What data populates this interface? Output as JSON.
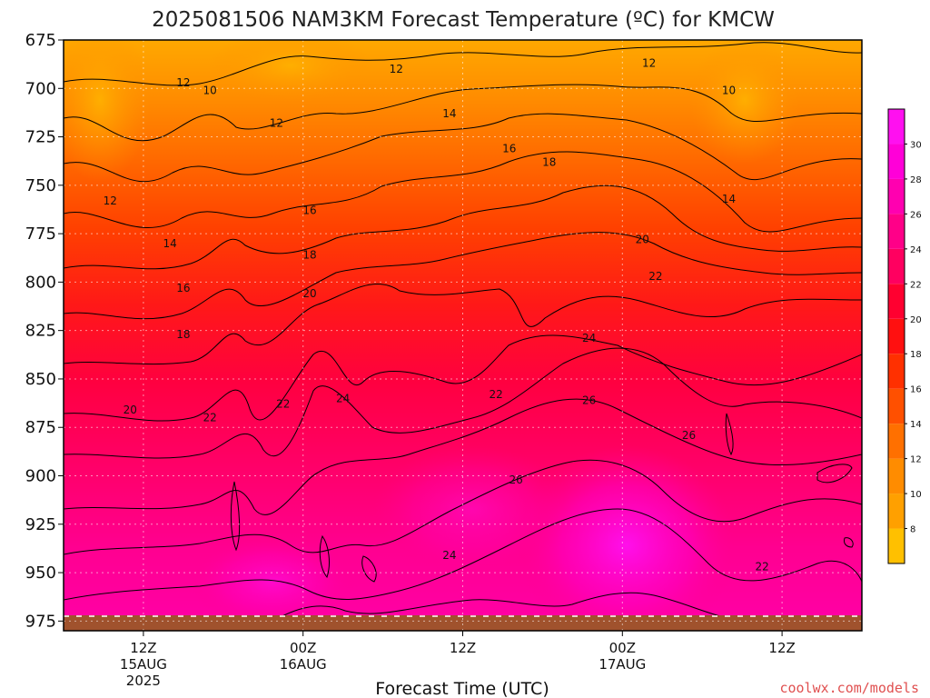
{
  "chart_data": {
    "type": "heatmap",
    "title": "2025081506 NAM3KM Forecast Temperature (ºC) for KMCW",
    "xlabel": "Forecast Time (UTC)",
    "ylabel": "",
    "y_ticks": [
      "675",
      "700",
      "725",
      "750",
      "775",
      "800",
      "825",
      "850",
      "875",
      "900",
      "925",
      "950",
      "975"
    ],
    "y_range": [
      675,
      980
    ],
    "x_range_hours": [
      6,
      66
    ],
    "x_ticks": [
      {
        "hour": 12,
        "label": "12Z",
        "sub1": "15AUG",
        "sub2": "2025"
      },
      {
        "hour": 24,
        "label": "00Z",
        "sub1": "16AUG",
        "sub2": ""
      },
      {
        "hour": 36,
        "label": "12Z",
        "sub1": "",
        "sub2": ""
      },
      {
        "hour": 48,
        "label": "00Z",
        "sub1": "17AUG",
        "sub2": ""
      },
      {
        "hour": 60,
        "label": "12Z",
        "sub1": "",
        "sub2": ""
      }
    ],
    "colorbar": {
      "ticks": [
        "8",
        "10",
        "12",
        "14",
        "16",
        "18",
        "20",
        "22",
        "24",
        "26",
        "28",
        "30"
      ],
      "colors": [
        "#ffc000",
        "#ffa000",
        "#ff8c00",
        "#ff7000",
        "#ff5000",
        "#ff3000",
        "#ff1010",
        "#ff0030",
        "#ff0060",
        "#ff0088",
        "#ff00b0",
        "#ff00d8",
        "#ff10f0"
      ]
    },
    "contour_labels": [
      {
        "hour": 15.0,
        "p": 697,
        "text": "12"
      },
      {
        "hour": 17.0,
        "p": 701,
        "text": "10"
      },
      {
        "hour": 22.0,
        "p": 718,
        "text": "12"
      },
      {
        "hour": 31.0,
        "p": 690,
        "text": "12"
      },
      {
        "hour": 35.0,
        "p": 713,
        "text": "14"
      },
      {
        "hour": 9.5,
        "p": 758,
        "text": "12"
      },
      {
        "hour": 14.0,
        "p": 780,
        "text": "14"
      },
      {
        "hour": 15.0,
        "p": 803,
        "text": "16"
      },
      {
        "hour": 15.0,
        "p": 827,
        "text": "18"
      },
      {
        "hour": 11.0,
        "p": 866,
        "text": "20"
      },
      {
        "hour": 17.0,
        "p": 870,
        "text": "22"
      },
      {
        "hour": 22.5,
        "p": 863,
        "text": "22"
      },
      {
        "hour": 24.5,
        "p": 763,
        "text": "16"
      },
      {
        "hour": 24.5,
        "p": 786,
        "text": "18"
      },
      {
        "hour": 24.5,
        "p": 806,
        "text": "20"
      },
      {
        "hour": 27.0,
        "p": 860,
        "text": "24"
      },
      {
        "hour": 39.5,
        "p": 731,
        "text": "16"
      },
      {
        "hour": 42.5,
        "p": 738,
        "text": "18"
      },
      {
        "hour": 38.5,
        "p": 858,
        "text": "22"
      },
      {
        "hour": 45.5,
        "p": 829,
        "text": "24"
      },
      {
        "hour": 45.5,
        "p": 861,
        "text": "26"
      },
      {
        "hour": 40.0,
        "p": 902,
        "text": "26"
      },
      {
        "hour": 35.0,
        "p": 941,
        "text": "24"
      },
      {
        "hour": 49.5,
        "p": 778,
        "text": "20"
      },
      {
        "hour": 50.5,
        "p": 797,
        "text": "22"
      },
      {
        "hour": 50.0,
        "p": 687,
        "text": "12"
      },
      {
        "hour": 56.0,
        "p": 701,
        "text": "10"
      },
      {
        "hour": 56.0,
        "p": 757,
        "text": "14"
      },
      {
        "hour": 53.0,
        "p": 879,
        "text": "26"
      },
      {
        "hour": 58.5,
        "p": 947,
        "text": "22"
      }
    ]
  },
  "footer": {
    "credit": "coolwx.com/models"
  }
}
